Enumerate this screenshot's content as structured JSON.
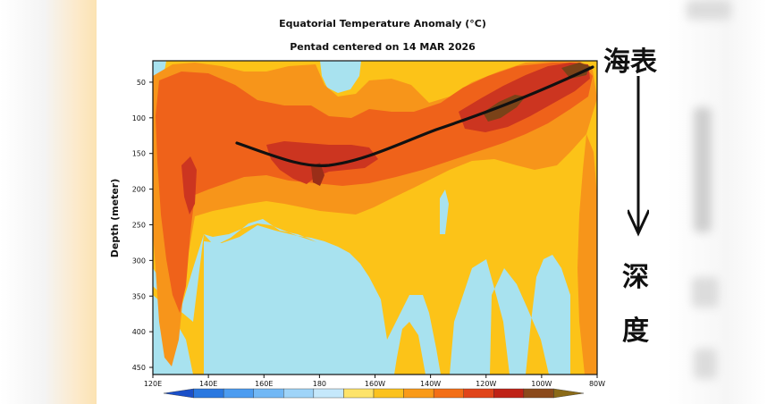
{
  "chart_data": {
    "type": "heatmap",
    "title": "Equatorial Temperature Anomaly (°C)",
    "subtitle": "Pentad centered on 14 MAR 2026",
    "ylabel": "Depth (meter)",
    "xlabel": "",
    "x_ticks": [
      "120E",
      "140E",
      "160E",
      "180",
      "160W",
      "140W",
      "120W",
      "100W",
      "80W"
    ],
    "y_ticks": [
      "50",
      "100",
      "150",
      "200",
      "250",
      "300",
      "350",
      "400",
      "450"
    ],
    "ylim": [
      20,
      460
    ],
    "xlim_lon_east": [
      120,
      280
    ],
    "colorbar_colors": [
      "#1a4fc8",
      "#2a78e0",
      "#4c9cf0",
      "#72b8f5",
      "#9fd4f8",
      "#c5e8fb",
      "#fde36a",
      "#fbc21e",
      "#f99a18",
      "#f36e16",
      "#e0441a",
      "#bf2217",
      "#8b4a1c",
      "#8a6a18"
    ],
    "thermocline_curve_lon_depth": [
      [
        150,
        127
      ],
      [
        160,
        140
      ],
      [
        170,
        150
      ],
      [
        180,
        155
      ],
      [
        190,
        150
      ],
      [
        200,
        138
      ],
      [
        220,
        112
      ],
      [
        240,
        85
      ],
      [
        260,
        55
      ],
      [
        275,
        28
      ]
    ]
  },
  "annotations": {
    "surface_label": "海表",
    "depth_label_1": "深",
    "depth_label_2": "度"
  },
  "colors": {
    "deep_blue": "#a8e2ef",
    "yellow": "#fcc318",
    "orange": "#f7951a",
    "orange_red": "#ef621a",
    "red": "#cc3520",
    "dark_red": "#9a2e18",
    "brown": "#7a4218"
  }
}
